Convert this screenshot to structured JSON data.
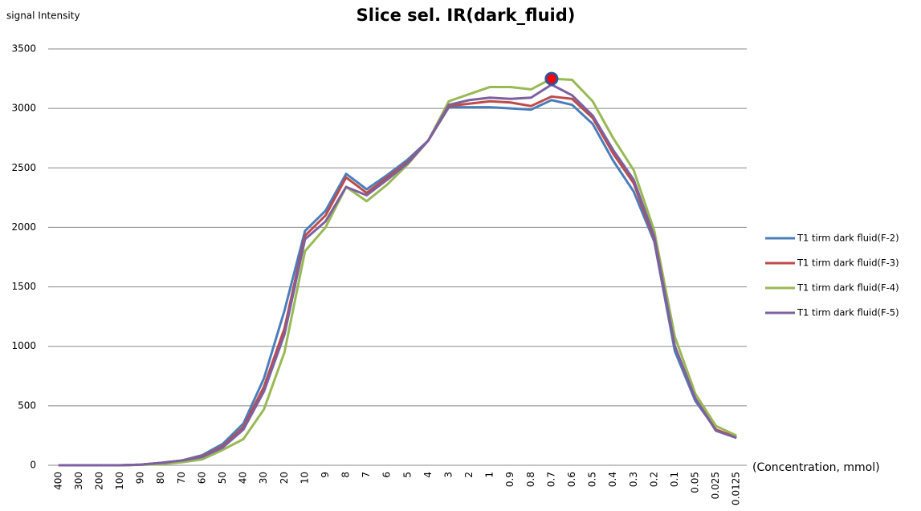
{
  "chart_data": {
    "type": "line",
    "title": "Slice sel.  IR(dark_fluid)",
    "y_label": "signal Intensity",
    "x_label": "(Concentration, mmol)",
    "categories": [
      "400",
      "300",
      "200",
      "100",
      "90",
      "80",
      "70",
      "60",
      "50",
      "40",
      "30",
      "20",
      "10",
      "9",
      "8",
      "7",
      "6",
      "5",
      "4",
      "3",
      "2",
      "1",
      "0.9",
      "0.8",
      "0.7",
      "0.6",
      "0.5",
      "0.4",
      "0.3",
      "0.2",
      "0.1",
      "0.05",
      "0.025",
      "0.0125"
    ],
    "series": [
      {
        "name": "T1 tirm dark fluid(F-2)",
        "color": "#4a7ebb",
        "values": [
          0,
          0,
          0,
          0,
          5,
          20,
          40,
          85,
          180,
          350,
          730,
          1300,
          1970,
          2140,
          2450,
          2320,
          2440,
          2570,
          2730,
          3010,
          3010,
          3010,
          3000,
          2990,
          3070,
          3030,
          2870,
          2560,
          2300,
          1880,
          960,
          540,
          300,
          230
        ]
      },
      {
        "name": "T1 tirm dark fluid(F-3)",
        "color": "#be4b48",
        "values": [
          0,
          0,
          0,
          0,
          5,
          20,
          40,
          75,
          160,
          320,
          660,
          1150,
          1930,
          2100,
          2420,
          2290,
          2420,
          2550,
          2730,
          3020,
          3040,
          3060,
          3050,
          3020,
          3100,
          3080,
          2920,
          2620,
          2370,
          1900,
          1000,
          560,
          300,
          235
        ]
      },
      {
        "name": "T1 tirm dark fluid(F-4)",
        "color": "#98b954",
        "values": [
          0,
          0,
          0,
          0,
          3,
          10,
          25,
          50,
          130,
          220,
          470,
          950,
          1800,
          2000,
          2340,
          2220,
          2360,
          2530,
          2730,
          3060,
          3120,
          3180,
          3180,
          3160,
          3250,
          3240,
          3060,
          2750,
          2480,
          1970,
          1080,
          600,
          330,
          250
        ]
      },
      {
        "name": "T1 tirm dark fluid(F-5)",
        "color": "#7d60a0",
        "values": [
          0,
          0,
          0,
          0,
          5,
          20,
          40,
          70,
          150,
          300,
          620,
          1100,
          1900,
          2050,
          2340,
          2270,
          2400,
          2540,
          2730,
          3030,
          3070,
          3090,
          3080,
          3090,
          3200,
          3110,
          2940,
          2650,
          2400,
          1920,
          1000,
          560,
          290,
          230
        ]
      }
    ],
    "marker": {
      "x": "0.7",
      "value": 3250,
      "color": "#ff0000",
      "edge_color": "#2e5597"
    },
    "ylim": [
      0,
      3500
    ],
    "yticks": [
      0,
      500,
      1000,
      1500,
      2000,
      2500,
      3000,
      3500
    ],
    "grid": true,
    "legend": "right"
  }
}
